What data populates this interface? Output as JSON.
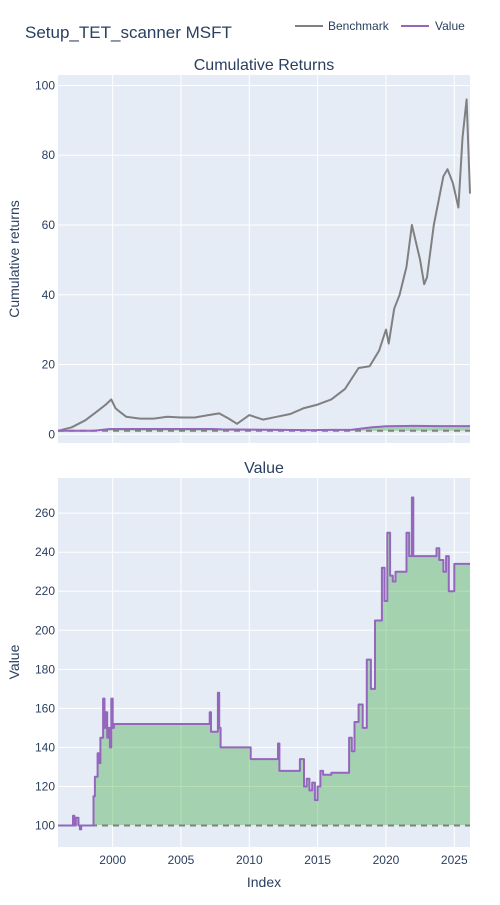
{
  "title": "Setup_TET_scanner MSFT",
  "legend": [
    {
      "label": "Benchmark",
      "color": "#808080"
    },
    {
      "label": "Value",
      "color": "#9467bd"
    }
  ],
  "colors": {
    "plot_background": "#e5ecf6",
    "benchmark": "#808080",
    "value": "#9467bd",
    "fill_above": "#2ca02c",
    "baseline": "#808080"
  },
  "chart_data": [
    {
      "type": "line",
      "title": "Cumulative Returns",
      "xlabel": "",
      "ylabel": "Cumulative returns",
      "xlim": [
        1996.0,
        2026.15
      ],
      "ylim": [
        -2.5,
        103
      ],
      "yticks": [
        0,
        20,
        40,
        60,
        80,
        100
      ],
      "grid": true,
      "legend_placement": "top-right",
      "baseline": 1,
      "series": [
        {
          "name": "Benchmark",
          "color": "#808080",
          "x": [
            1996.0,
            1997.0,
            1998.0,
            1999.0,
            1999.5,
            1999.9,
            2000.2,
            2000.5,
            2001.0,
            2002.0,
            2003.0,
            2004.0,
            2005.0,
            2006.0,
            2007.0,
            2007.8,
            2008.5,
            2009.1,
            2010.0,
            2011.0,
            2012.0,
            2013.0,
            2014.0,
            2015.0,
            2016.0,
            2017.0,
            2018.0,
            2018.8,
            2019.5,
            2020.0,
            2020.2,
            2020.6,
            2021.0,
            2021.5,
            2021.9,
            2022.5,
            2022.8,
            2023.0,
            2023.5,
            2023.9,
            2024.2,
            2024.5,
            2024.9,
            2025.3,
            2025.6,
            2025.9,
            2026.15
          ],
          "y": [
            1.0,
            2.0,
            4.0,
            7.0,
            8.5,
            10.0,
            7.5,
            6.5,
            5.0,
            4.5,
            4.5,
            5.0,
            4.8,
            4.8,
            5.5,
            6.0,
            4.5,
            3.0,
            5.5,
            4.2,
            5.0,
            5.8,
            7.5,
            8.5,
            10.0,
            13.0,
            19.0,
            19.5,
            24.0,
            30.0,
            26.0,
            36.0,
            40.0,
            48.0,
            60.0,
            50.0,
            43.0,
            45.0,
            60.0,
            68.0,
            74.0,
            76.0,
            72.0,
            65.0,
            85.0,
            96.0,
            69.0
          ]
        },
        {
          "name": "Value",
          "color": "#9467bd",
          "x": [
            1996.0,
            1998.6,
            1999.8,
            2007.3,
            2008.0,
            2010.2,
            2012.5,
            2014.5,
            2016.0,
            2017.5,
            2019.0,
            2020.0,
            2022.0,
            2024.0,
            2026.15
          ],
          "y": [
            1.0,
            1.0,
            1.5,
            1.5,
            1.4,
            1.35,
            1.25,
            1.2,
            1.25,
            1.27,
            2.0,
            2.3,
            2.4,
            2.35,
            2.35
          ]
        }
      ]
    },
    {
      "type": "area",
      "title": "Value",
      "xlabel": "Index",
      "ylabel": "Value",
      "xlim": [
        1996.0,
        2026.15
      ],
      "ylim": [
        89,
        278
      ],
      "yticks": [
        100,
        120,
        140,
        160,
        180,
        200,
        220,
        240,
        260
      ],
      "xticks": [
        2000,
        2005,
        2010,
        2015,
        2020,
        2025
      ],
      "grid": true,
      "baseline": 100,
      "series": [
        {
          "name": "Value",
          "color": "#9467bd",
          "x": [
            1996.0,
            1997.0,
            1997.1,
            1997.2,
            1997.3,
            1997.5,
            1997.6,
            1997.7,
            1998.0,
            1998.4,
            1998.6,
            1998.7,
            1998.9,
            1999.0,
            1999.1,
            1999.3,
            1999.4,
            1999.5,
            1999.6,
            1999.7,
            1999.8,
            1999.9,
            2000.0,
            2000.1,
            2000.2,
            2007.0,
            2007.1,
            2007.2,
            2007.3,
            2007.5,
            2007.7,
            2007.8,
            2007.9,
            2008.0,
            2010.0,
            2010.1,
            2010.2,
            2012.0,
            2012.1,
            2012.2,
            2013.5,
            2013.6,
            2013.7,
            2014.0,
            2014.2,
            2014.4,
            2014.6,
            2014.8,
            2015.0,
            2015.2,
            2015.4,
            2016.0,
            2017.0,
            2017.3,
            2017.5,
            2017.7,
            2018.0,
            2018.3,
            2018.6,
            2018.9,
            2019.2,
            2019.5,
            2019.7,
            2019.9,
            2020.1,
            2020.3,
            2020.5,
            2020.7,
            2021.0,
            2021.2,
            2021.5,
            2021.7,
            2021.9,
            2022.0,
            2022.2,
            2023.5,
            2023.7,
            2023.9,
            2024.2,
            2024.4,
            2024.6,
            2025.0,
            2026.15
          ],
          "y": [
            100,
            100,
            105,
            100,
            104,
            100,
            98,
            100,
            100,
            100,
            115,
            125,
            137,
            132,
            145,
            165,
            150,
            158,
            145,
            150,
            140,
            165,
            150,
            152,
            152,
            152,
            158,
            148,
            148,
            148,
            168,
            150,
            140,
            140,
            140,
            134,
            134,
            134,
            142,
            128,
            128,
            128,
            134,
            120,
            124,
            118,
            122,
            113,
            120,
            128,
            126,
            127,
            127,
            145,
            138,
            153,
            162,
            150,
            185,
            170,
            205,
            205,
            232,
            215,
            250,
            228,
            225,
            230,
            230,
            230,
            250,
            238,
            268,
            238,
            238,
            238,
            242,
            236,
            230,
            238,
            220,
            234,
            234
          ]
        }
      ]
    }
  ]
}
